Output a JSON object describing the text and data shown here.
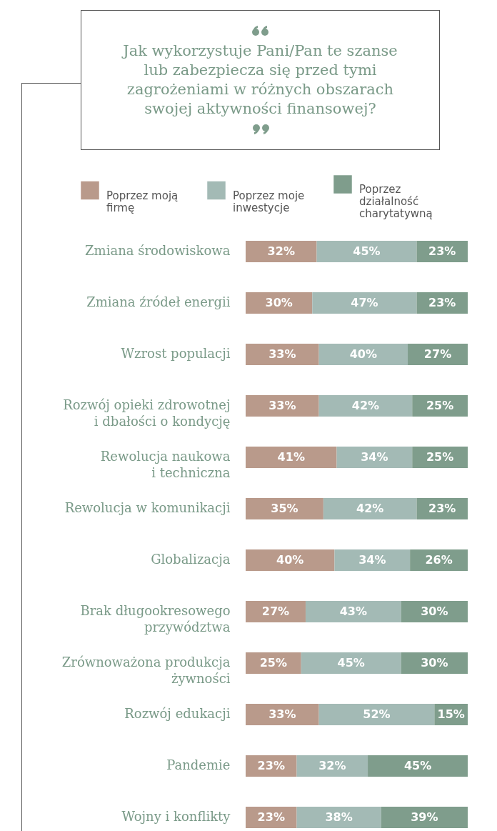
{
  "chart_data": {
    "type": "bar",
    "orientation": "horizontal",
    "stacked": true,
    "title": "Jak wykorzystuje Pani/Pan te szanse lub zabezpiecza się przed tymi zagrożeniami w różnych obszarach swojej aktywności finansowej?",
    "categories": [
      "Zmiana środowiskowa",
      "Zmiana źródeł energii",
      "Wzrost populacji",
      "Rozwój opieki zdrowotnej i dbałości o kondycję",
      "Rewolucja naukowa i techniczna",
      "Rewolucja w komunikacji",
      "Globalizacja",
      "Brak długookresowego przywództwa",
      "Zrównoważona produkcja żywności",
      "Rozwój edukacji",
      "Pandemie",
      "Wojny i konflikty"
    ],
    "series": [
      {
        "name": "Poprzez moją firmę",
        "color": "#b99a8b",
        "values": [
          32,
          30,
          33,
          33,
          41,
          35,
          40,
          27,
          25,
          33,
          23,
          23
        ],
        "value_labels": [
          "32%",
          "30%",
          "33%",
          "33%",
          "41%",
          "35%",
          "40%",
          "27%",
          "25%",
          "33%",
          "23%",
          "23%"
        ]
      },
      {
        "name": "Poprzez moje inwestycje",
        "color": "#a3bab5",
        "values": [
          45,
          47,
          40,
          42,
          34,
          42,
          34,
          43,
          45,
          52,
          32,
          38
        ],
        "value_labels": [
          "45%",
          "47%",
          "40%",
          "42%",
          "34%",
          "42%",
          "34%",
          "43%",
          "45%",
          "52%",
          "32%",
          "38%"
        ]
      },
      {
        "name": "Poprzez działalność charytatywną",
        "color": "#7f9d8c",
        "values": [
          23,
          23,
          27,
          25,
          25,
          23,
          26,
          30,
          30,
          15,
          45,
          39
        ],
        "value_labels": [
          "23%",
          "23%",
          "27%",
          "25%",
          "25%",
          "23%",
          "26%",
          "30%",
          "30%",
          "15%",
          "45%",
          "39%"
        ]
      }
    ],
    "legend": "top"
  }
}
